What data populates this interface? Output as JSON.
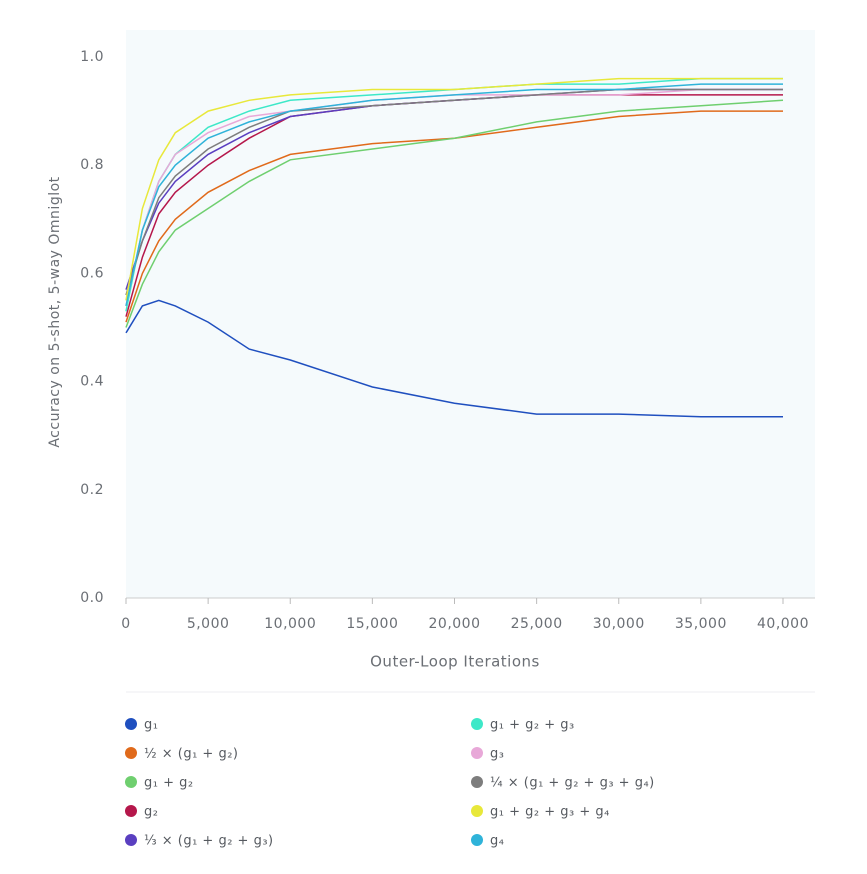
{
  "chart_data": {
    "type": "line",
    "y_label": "Accuracy on 5-shot, 5-way Omniglot",
    "x_label": "Outer-Loop Iterations",
    "x": [
      0,
      1000,
      2000,
      3000,
      5000,
      7500,
      10000,
      15000,
      20000,
      25000,
      30000,
      35000,
      40000
    ],
    "xlim": [
      0,
      40000
    ],
    "xticks": [
      0,
      {
        "value": 5000,
        "label": "5,000"
      },
      {
        "value": 10000,
        "label": "10,000"
      },
      {
        "value": 15000,
        "label": "15,000"
      },
      {
        "value": 20000,
        "label": "20,000"
      },
      {
        "value": 25000,
        "label": "25,000"
      },
      {
        "value": 30000,
        "label": "30,000"
      },
      {
        "value": 35000,
        "label": "35,000"
      },
      {
        "value": 40000,
        "label": "40,000"
      }
    ],
    "ylim": [
      0,
      1
    ],
    "yticks": [
      {
        "value": 0,
        "label": "0.0"
      },
      0.2,
      0.4,
      0.6,
      0.8,
      {
        "value": 1,
        "label": "1.0"
      }
    ],
    "series": [
      {
        "name": "g₁",
        "color": "#1f4fbf",
        "values": [
          0.49,
          0.54,
          0.55,
          0.54,
          0.51,
          0.46,
          0.44,
          0.39,
          0.36,
          0.34,
          0.34,
          0.335,
          0.335
        ]
      },
      {
        "name": "½ × (g₁ + g₂)",
        "color": "#e06a1b",
        "values": [
          0.51,
          0.6,
          0.66,
          0.7,
          0.75,
          0.79,
          0.82,
          0.84,
          0.85,
          0.87,
          0.89,
          0.9,
          0.9
        ]
      },
      {
        "name": "g₁ + g₂",
        "color": "#6fcf6f",
        "values": [
          0.5,
          0.58,
          0.64,
          0.68,
          0.72,
          0.77,
          0.81,
          0.83,
          0.85,
          0.88,
          0.9,
          0.91,
          0.92
        ]
      },
      {
        "name": "g₂",
        "color": "#b5174b",
        "values": [
          0.52,
          0.63,
          0.71,
          0.75,
          0.8,
          0.85,
          0.89,
          0.91,
          0.92,
          0.93,
          0.93,
          0.93,
          0.93
        ]
      },
      {
        "name": "⅓ × (g₁ + g₂ + g₃)",
        "color": "#5a3fc0",
        "values": [
          0.57,
          0.66,
          0.73,
          0.77,
          0.82,
          0.86,
          0.89,
          0.91,
          0.92,
          0.93,
          0.94,
          0.94,
          0.94
        ]
      },
      {
        "name": "g₁ + g₂ + g₃",
        "color": "#3de8c8",
        "values": [
          0.53,
          0.68,
          0.77,
          0.82,
          0.87,
          0.9,
          0.92,
          0.93,
          0.94,
          0.95,
          0.95,
          0.96,
          0.96
        ]
      },
      {
        "name": "g₃",
        "color": "#e8a8d8",
        "values": [
          0.54,
          0.68,
          0.77,
          0.82,
          0.86,
          0.89,
          0.9,
          0.92,
          0.93,
          0.93,
          0.93,
          0.94,
          0.94
        ]
      },
      {
        "name": "¼ × (g₁ + g₂ + g₃ + g₄)",
        "color": "#7d7d7d",
        "values": [
          0.56,
          0.66,
          0.74,
          0.78,
          0.83,
          0.87,
          0.9,
          0.91,
          0.92,
          0.93,
          0.94,
          0.94,
          0.94
        ]
      },
      {
        "name": "g₁ + g₂ + g₃ + g₄",
        "color": "#e8e83a",
        "values": [
          0.55,
          0.72,
          0.81,
          0.86,
          0.9,
          0.92,
          0.93,
          0.94,
          0.94,
          0.95,
          0.96,
          0.96,
          0.96
        ]
      },
      {
        "name": "g₄",
        "color": "#2fb3d9",
        "values": [
          0.54,
          0.68,
          0.76,
          0.8,
          0.85,
          0.88,
          0.9,
          0.92,
          0.93,
          0.94,
          0.94,
          0.95,
          0.95
        ]
      }
    ]
  }
}
